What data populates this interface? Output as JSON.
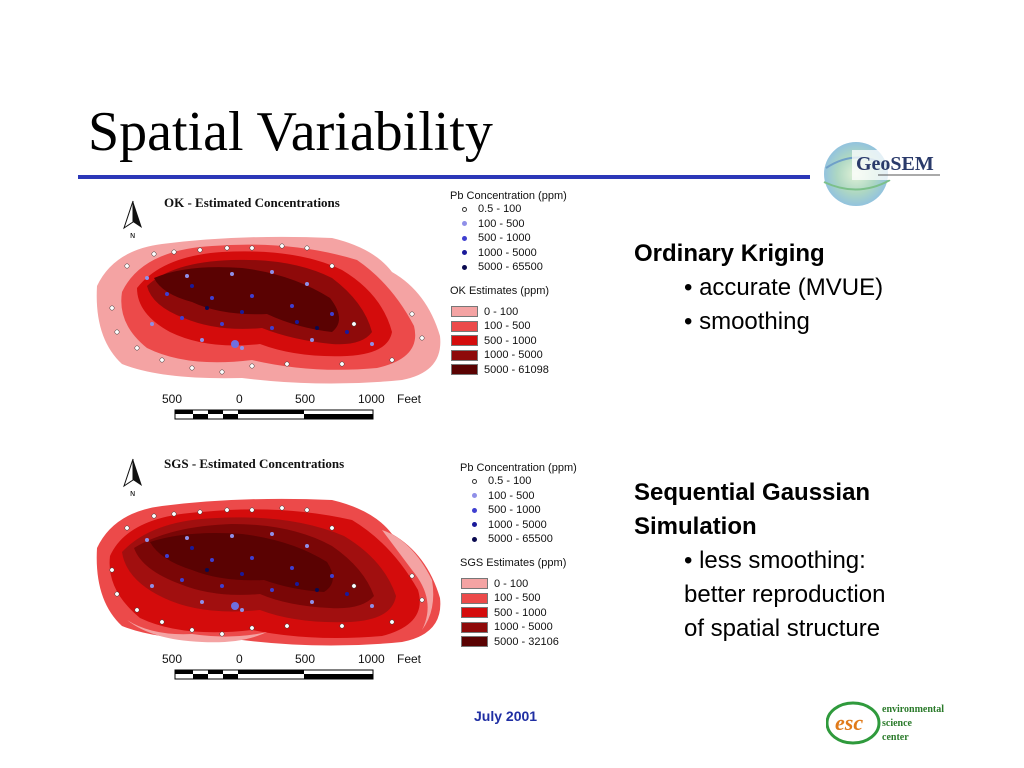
{
  "slide": {
    "title": "Spatial Variability",
    "footer_date": "July 2001"
  },
  "logos": {
    "geosem": "GeoSEM",
    "esc_mark": "esc",
    "esc_words": [
      "environmental",
      "science",
      "center"
    ]
  },
  "maps": [
    {
      "title": "OK - Estimated Concentrations",
      "points_legend_title": "Pb Concentration (ppm)",
      "points_legend": [
        "0.5 - 100",
        "100 - 500",
        "500 - 1000",
        "1000 - 5000",
        "5000 - 65500"
      ],
      "estimates_legend_title": "OK Estimates (ppm)",
      "estimates_legend": [
        "0 - 100",
        "100 - 500",
        "500 - 1000",
        "1000 - 5000",
        "5000 - 61098"
      ],
      "scale_labels": [
        "500",
        "0",
        "500",
        "1000",
        "Feet"
      ],
      "north_label": "N"
    },
    {
      "title": "SGS - Estimated Concentrations",
      "points_legend_title": "Pb Concentration (ppm)",
      "points_legend": [
        "0.5 - 100",
        "100 - 500",
        "500 - 1000",
        "1000 - 5000",
        "5000 - 65500"
      ],
      "estimates_legend_title": "SGS Estimates (ppm)",
      "estimates_legend": [
        "0 - 100",
        "100 - 500",
        "500 - 1000",
        "1000 - 5000",
        "5000 - 32106"
      ],
      "scale_labels": [
        "500",
        "0",
        "500",
        "1000",
        "Feet"
      ],
      "north_label": "N"
    }
  ],
  "colors": {
    "title_rule": "#2b37b8",
    "estimate_classes": [
      "#f4a3a3",
      "#ec4a4a",
      "#d40c0c",
      "#8e0a0a",
      "#5a0202"
    ],
    "point_classes": [
      "#ffffff",
      "#8f8fe8",
      "#3f3fd0",
      "#1a1a9a",
      "#0a0a50"
    ]
  },
  "bullets": [
    {
      "heading": "Ordinary Kriging",
      "items": [
        "accurate (MVUE)",
        "smoothing"
      ]
    },
    {
      "heading_lines": [
        "Sequential Gaussian",
        "Simulation"
      ],
      "item_lines": [
        "less smoothing:",
        "better reproduction",
        "of spatial structure"
      ]
    }
  ]
}
